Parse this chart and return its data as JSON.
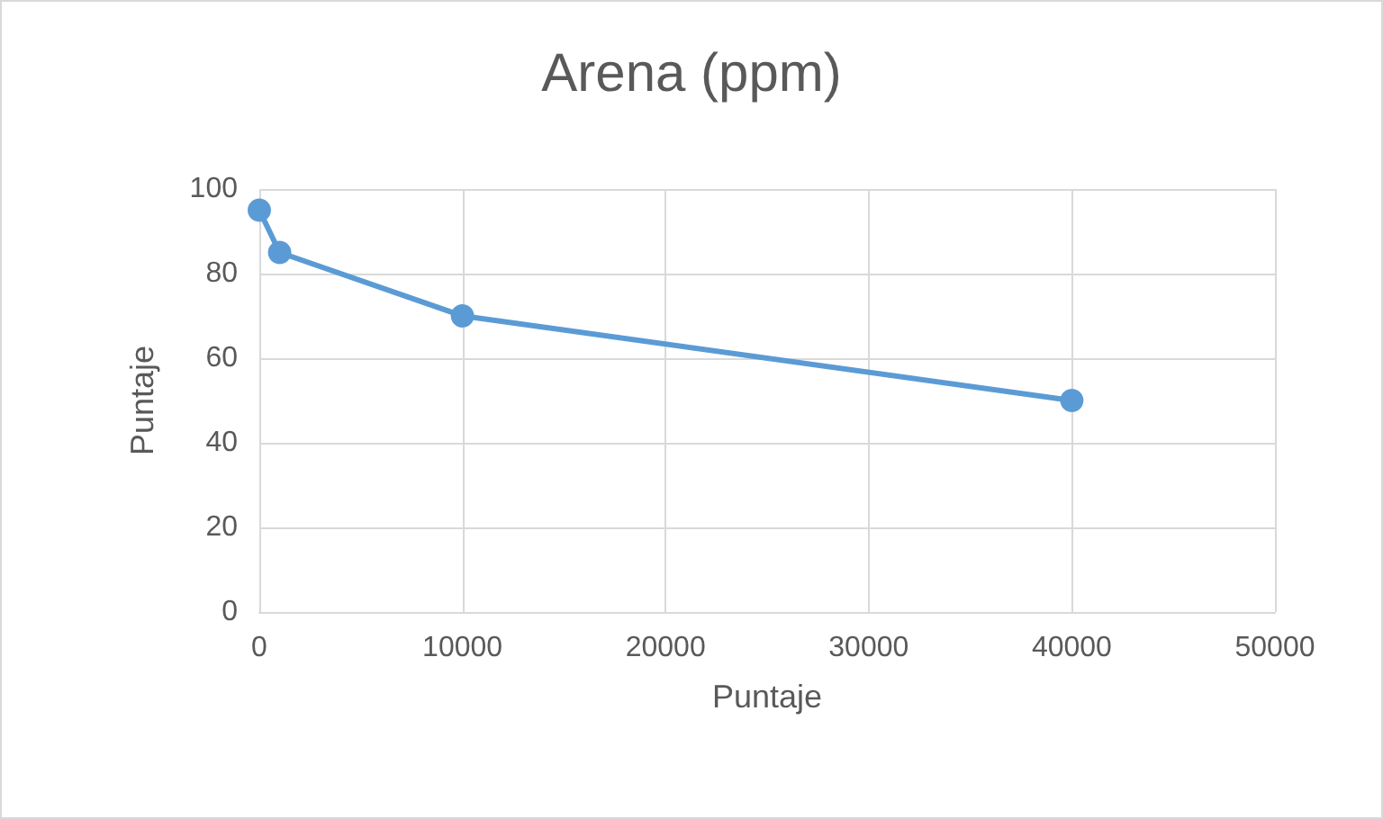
{
  "chart_data": {
    "type": "line",
    "title": "Arena (ppm)",
    "xlabel": "Puntaje",
    "ylabel": "Puntaje",
    "x": [
      0,
      1000,
      10000,
      40000
    ],
    "series": [
      {
        "color": "#5b9bd5",
        "values": [
          95,
          85,
          70,
          50
        ]
      }
    ],
    "xlim": [
      0,
      50000
    ],
    "xticks": [
      0,
      10000,
      20000,
      30000,
      40000,
      50000
    ],
    "ylim": [
      0,
      100
    ],
    "yticks": [
      0,
      20,
      40,
      60,
      80,
      100
    ],
    "grid": true,
    "marker": "circle",
    "line_style": "solid"
  }
}
